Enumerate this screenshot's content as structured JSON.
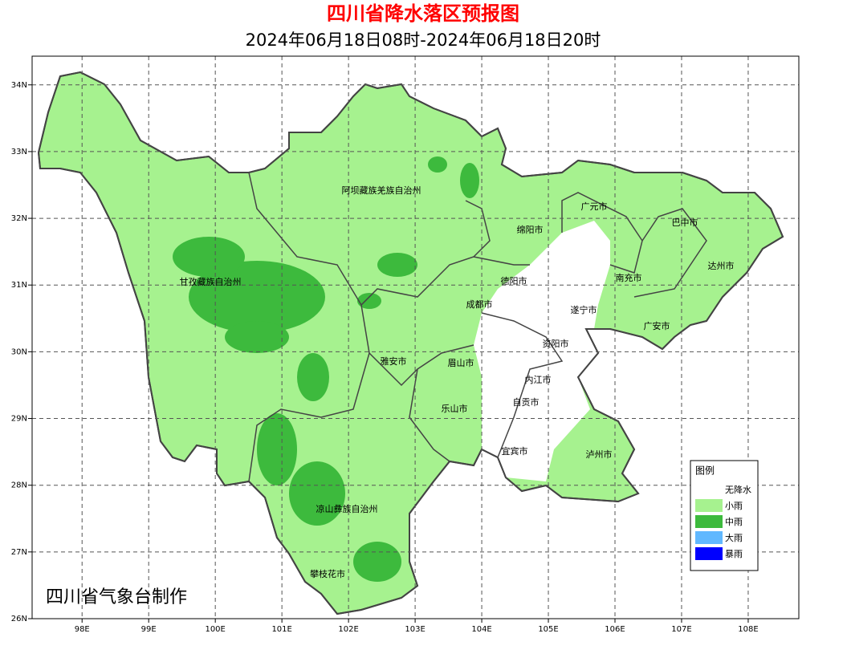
{
  "header": {
    "title": "四川省降水落区预报图",
    "subtitle": "2024年06月18日08时-2024年06月18日20时"
  },
  "map": {
    "xlim": [
      97.25,
      108.76
    ],
    "ylim": [
      26,
      34.43
    ],
    "xticks": [
      {
        "value": 98,
        "label": "98E"
      },
      {
        "value": 99,
        "label": "99E"
      },
      {
        "value": 100,
        "label": "100E"
      },
      {
        "value": 101,
        "label": "101E"
      },
      {
        "value": 102,
        "label": "102E"
      },
      {
        "value": 103,
        "label": "103E"
      },
      {
        "value": 104,
        "label": "104E"
      },
      {
        "value": 105,
        "label": "105E"
      },
      {
        "value": 106,
        "label": "106E"
      },
      {
        "value": 107,
        "label": "107E"
      },
      {
        "value": 108,
        "label": "108E"
      }
    ],
    "yticks": [
      {
        "value": 26,
        "label": "26N"
      },
      {
        "value": 27,
        "label": "27N"
      },
      {
        "value": 28,
        "label": "28N"
      },
      {
        "value": 29,
        "label": "29N"
      },
      {
        "value": 30,
        "label": "30N"
      },
      {
        "value": 31,
        "label": "31N"
      },
      {
        "value": 32,
        "label": "32N"
      },
      {
        "value": 33,
        "label": "33N"
      },
      {
        "value": 34,
        "label": "34N"
      }
    ],
    "grid": true,
    "regions": [
      "阿坝藏族羌族自治州",
      "广元市",
      "巴中市",
      "绵阳市",
      "达州市",
      "德阳市",
      "甘孜藏族自治州",
      "南充市",
      "成都市",
      "遂宁市",
      "广安市",
      "资阳市",
      "雅安市",
      "眉山市",
      "内江市",
      "自贡市",
      "乐山市",
      "宜宾市",
      "泸州市",
      "凉山彝族自治州",
      "攀枝花市"
    ],
    "credit": "四川省气象台制作"
  },
  "legend": {
    "title": "图例",
    "items": [
      {
        "label": "无降水",
        "color": "#ffffff"
      },
      {
        "label": "小雨",
        "color": "#a6f28f"
      },
      {
        "label": "中雨",
        "color": "#3dba3d"
      },
      {
        "label": "大雨",
        "color": "#61b8ff"
      },
      {
        "label": "暴雨",
        "color": "#0000fe"
      }
    ]
  }
}
